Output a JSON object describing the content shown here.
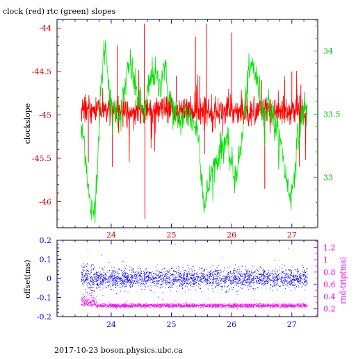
{
  "title": "clock (red) rtc (green) slopes",
  "footer": "2017-10-23  boson.physics.ubc.ca",
  "colors": {
    "clock": "#ff0000",
    "rtc": "#00e000",
    "offset": "#0000ff",
    "rndtrip": "#ff00ff",
    "axis_red": "#e00000",
    "axis_green": "#00c000",
    "axis_blue": "#0000ff",
    "axis_magenta": "#ff00ff",
    "frame": "#000000"
  },
  "chart_data": [
    {
      "type": "line",
      "name": "top-panel",
      "xlabel": "",
      "ylabel_left": "clockslope",
      "ylabel_right": "",
      "xlim": [
        23.1,
        27.43
      ],
      "ylim_left": [
        -46.3,
        -43.9
      ],
      "ylim_right": [
        32.6,
        34.25
      ],
      "x_ticks": [
        "24",
        "25",
        "26",
        "27"
      ],
      "x_tick_values": [
        24,
        25,
        26,
        27
      ],
      "y_left_ticks": [
        "-44",
        "-44.5",
        "-45",
        "-45.5",
        "-46"
      ],
      "y_left_tick_values": [
        -44,
        -44.5,
        -45,
        -45.5,
        -46
      ],
      "y_right_ticks": [
        "34",
        "33.5",
        "33"
      ],
      "y_right_tick_values": [
        34,
        33.5,
        33
      ],
      "series": [
        {
          "axis": "left",
          "x_range": [
            23.5,
            27.25
          ],
          "mean": -44.95,
          "typical_spread": 0.08,
          "spikes": [
            {
              "x": 23.62,
              "y": -45.55
            },
            {
              "x": 24.02,
              "y": -45.6
            },
            {
              "x": 24.1,
              "y": -44.2
            },
            {
              "x": 24.55,
              "y": -43.95
            },
            {
              "x": 24.56,
              "y": -46.2
            },
            {
              "x": 25.08,
              "y": -44.55
            },
            {
              "x": 25.4,
              "y": -44.1
            },
            {
              "x": 25.47,
              "y": -44.55
            },
            {
              "x": 25.55,
              "y": -45.45
            },
            {
              "x": 25.58,
              "y": -43.95
            },
            {
              "x": 26.0,
              "y": -44.05
            },
            {
              "x": 26.5,
              "y": -44.6
            },
            {
              "x": 26.55,
              "y": -45.85
            },
            {
              "x": 26.88,
              "y": -44.6
            },
            {
              "x": 27.0,
              "y": -44.5
            },
            {
              "x": 27.15,
              "y": -44.65
            }
          ]
        },
        {
          "axis": "right",
          "points": [
            [
              23.5,
              33.35
            ],
            [
              23.55,
              33.3
            ],
            [
              23.6,
              33.05
            ],
            [
              23.63,
              32.85
            ],
            [
              23.66,
              32.75
            ],
            [
              23.7,
              32.7
            ],
            [
              23.74,
              32.85
            ],
            [
              23.78,
              33.2
            ],
            [
              23.82,
              33.6
            ],
            [
              23.86,
              33.9
            ],
            [
              23.9,
              34.05
            ],
            [
              23.94,
              33.9
            ],
            [
              23.98,
              33.6
            ],
            [
              24.02,
              33.45
            ],
            [
              24.08,
              33.55
            ],
            [
              24.16,
              33.5
            ],
            [
              24.24,
              33.75
            ],
            [
              24.32,
              33.9
            ],
            [
              24.4,
              33.7
            ],
            [
              24.5,
              33.55
            ],
            [
              24.56,
              33.5
            ],
            [
              24.62,
              33.7
            ],
            [
              24.7,
              33.85
            ],
            [
              24.8,
              33.7
            ],
            [
              24.88,
              33.9
            ],
            [
              24.95,
              33.65
            ],
            [
              25.05,
              33.5
            ],
            [
              25.15,
              33.45
            ],
            [
              25.25,
              33.5
            ],
            [
              25.35,
              33.45
            ],
            [
              25.45,
              33.35
            ],
            [
              25.5,
              33.05
            ],
            [
              25.53,
              32.85
            ],
            [
              25.56,
              32.75
            ],
            [
              25.6,
              32.9
            ],
            [
              25.65,
              33.0
            ],
            [
              25.72,
              33.1
            ],
            [
              25.8,
              33.2
            ],
            [
              25.85,
              33.25
            ],
            [
              25.9,
              33.3
            ],
            [
              25.95,
              33.2
            ],
            [
              26.0,
              33.1
            ],
            [
              26.05,
              33.0
            ],
            [
              26.1,
              33.1
            ],
            [
              26.15,
              33.2
            ],
            [
              26.2,
              33.45
            ],
            [
              26.25,
              33.7
            ],
            [
              26.3,
              33.82
            ],
            [
              26.35,
              33.9
            ],
            [
              26.4,
              33.8
            ],
            [
              26.45,
              33.7
            ],
            [
              26.5,
              33.55
            ],
            [
              26.55,
              33.45
            ],
            [
              26.62,
              33.6
            ],
            [
              26.7,
              33.45
            ],
            [
              26.78,
              33.3
            ],
            [
              26.85,
              33.2
            ],
            [
              26.9,
              33.0
            ],
            [
              26.95,
              32.9
            ],
            [
              27.0,
              32.85
            ],
            [
              27.05,
              33.1
            ],
            [
              27.1,
              33.3
            ],
            [
              27.15,
              33.45
            ],
            [
              27.2,
              33.55
            ],
            [
              27.25,
              33.5
            ]
          ]
        }
      ]
    },
    {
      "type": "scatter",
      "name": "bottom-panel",
      "xlabel": "",
      "ylabel_left": "offset(ms)",
      "ylabel_right": "rnd-trip(ms)",
      "xlim": [
        23.1,
        27.43
      ],
      "ylim_left": [
        -0.2,
        0.2
      ],
      "ylim_right": [
        0.07,
        1.32
      ],
      "x_ticks": [
        "24",
        "25",
        "26",
        "27"
      ],
      "x_tick_values": [
        24,
        25,
        26,
        27
      ],
      "y_left_ticks": [
        "0.2",
        "0.1",
        "0",
        "-0.1",
        "-0.2"
      ],
      "y_left_tick_values": [
        0.2,
        0.1,
        0,
        -0.1,
        -0.2
      ],
      "y_right_ticks": [
        "1.2",
        "1",
        "0.8",
        "0.6",
        "0.4",
        "0.2"
      ],
      "y_right_tick_values": [
        1.2,
        1.0,
        0.8,
        0.6,
        0.4,
        0.2
      ],
      "series": [
        {
          "axis": "left",
          "x_range": [
            23.5,
            27.25
          ],
          "mean": 0.0,
          "typical_spread": 0.025
        },
        {
          "axis": "right",
          "x_range": [
            23.5,
            27.25
          ],
          "mean": 0.25,
          "typical_spread": 0.015
        }
      ]
    }
  ]
}
